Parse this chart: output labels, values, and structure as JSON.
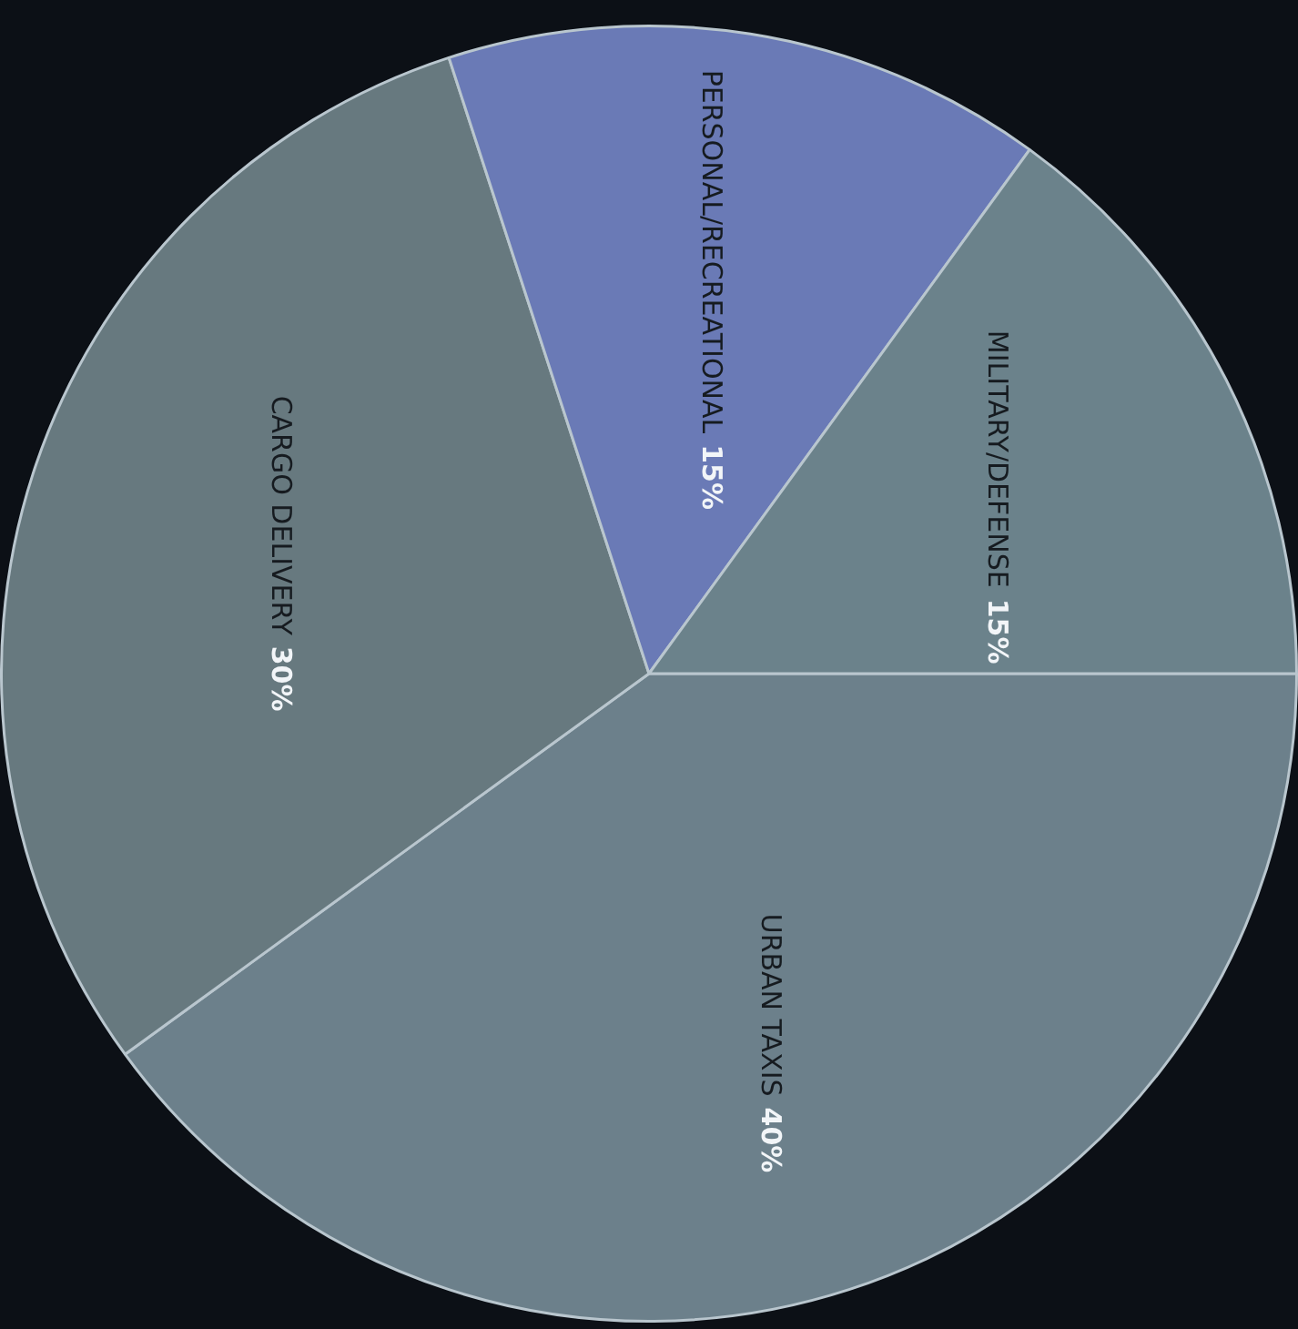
{
  "chart_data": {
    "type": "pie",
    "categories": [
      "URBAN TAXIS",
      "CARGO DELIVERY",
      "PERSONAL/RECREATIONAL",
      "MILITARY/DEFENSE"
    ],
    "values": [
      40,
      30,
      15,
      15
    ],
    "colors": [
      "#6c808b",
      "#67797f",
      "#6a7ab6",
      "#6b828b"
    ],
    "value_labels": [
      "40%",
      "30%",
      "15%",
      "15%"
    ],
    "legend": false
  }
}
